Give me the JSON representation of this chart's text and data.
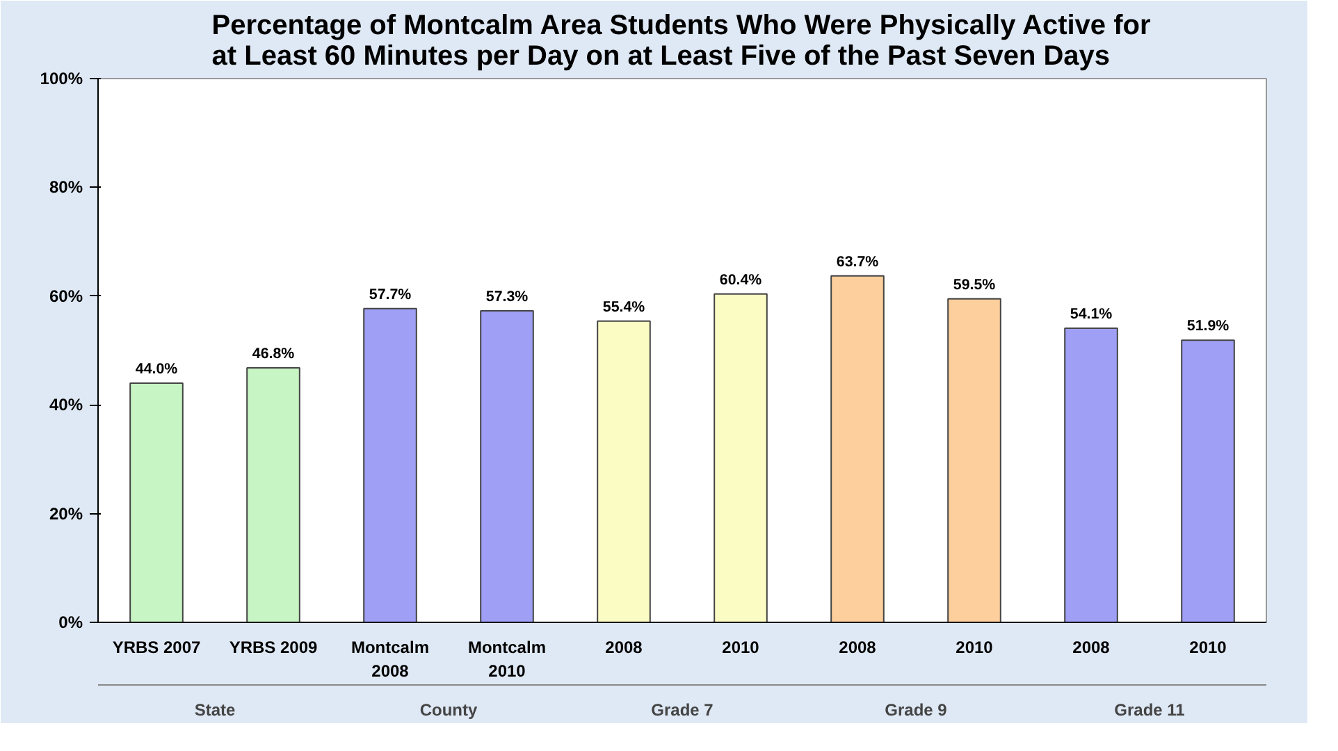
{
  "chart_data": {
    "type": "bar",
    "title": "Percentage of Montcalm Area Students Who Were Physically Active for\nat Least 60 Minutes per Day on at Least Five of the Past Seven Days",
    "categories": [
      "YRBS 2007",
      "YRBS 2009",
      "Montcalm\n2008",
      "Montcalm\n2010",
      "2008",
      "2010",
      "2008",
      "2010",
      "2008",
      "2010"
    ],
    "values": [
      44.0,
      46.8,
      57.7,
      57.3,
      55.4,
      60.4,
      63.7,
      59.5,
      54.1,
      51.9
    ],
    "value_labels": [
      "44.0%",
      "46.8%",
      "57.7%",
      "57.3%",
      "55.4%",
      "60.4%",
      "63.7%",
      "59.5%",
      "54.1%",
      "51.9%"
    ],
    "colors": [
      "#c8f5c4",
      "#c8f5c4",
      "#9f9ff5",
      "#9f9ff5",
      "#fbfbc4",
      "#fbfbc4",
      "#fccf9c",
      "#fccf9c",
      "#9f9ff5",
      "#9f9ff5"
    ],
    "annotations": [
      "State",
      "County",
      "Grade 7",
      "Grade 9",
      "Grade 11"
    ],
    "ylim": [
      0,
      100
    ],
    "yticks": [
      {
        "value": 0,
        "label": "0%"
      },
      {
        "value": 20,
        "label": "20%"
      },
      {
        "value": 40,
        "label": "40%"
      },
      {
        "value": 60,
        "label": "60%"
      },
      {
        "value": 80,
        "label": "80%"
      },
      {
        "value": 100,
        "label": "100%"
      }
    ],
    "grid": false
  }
}
